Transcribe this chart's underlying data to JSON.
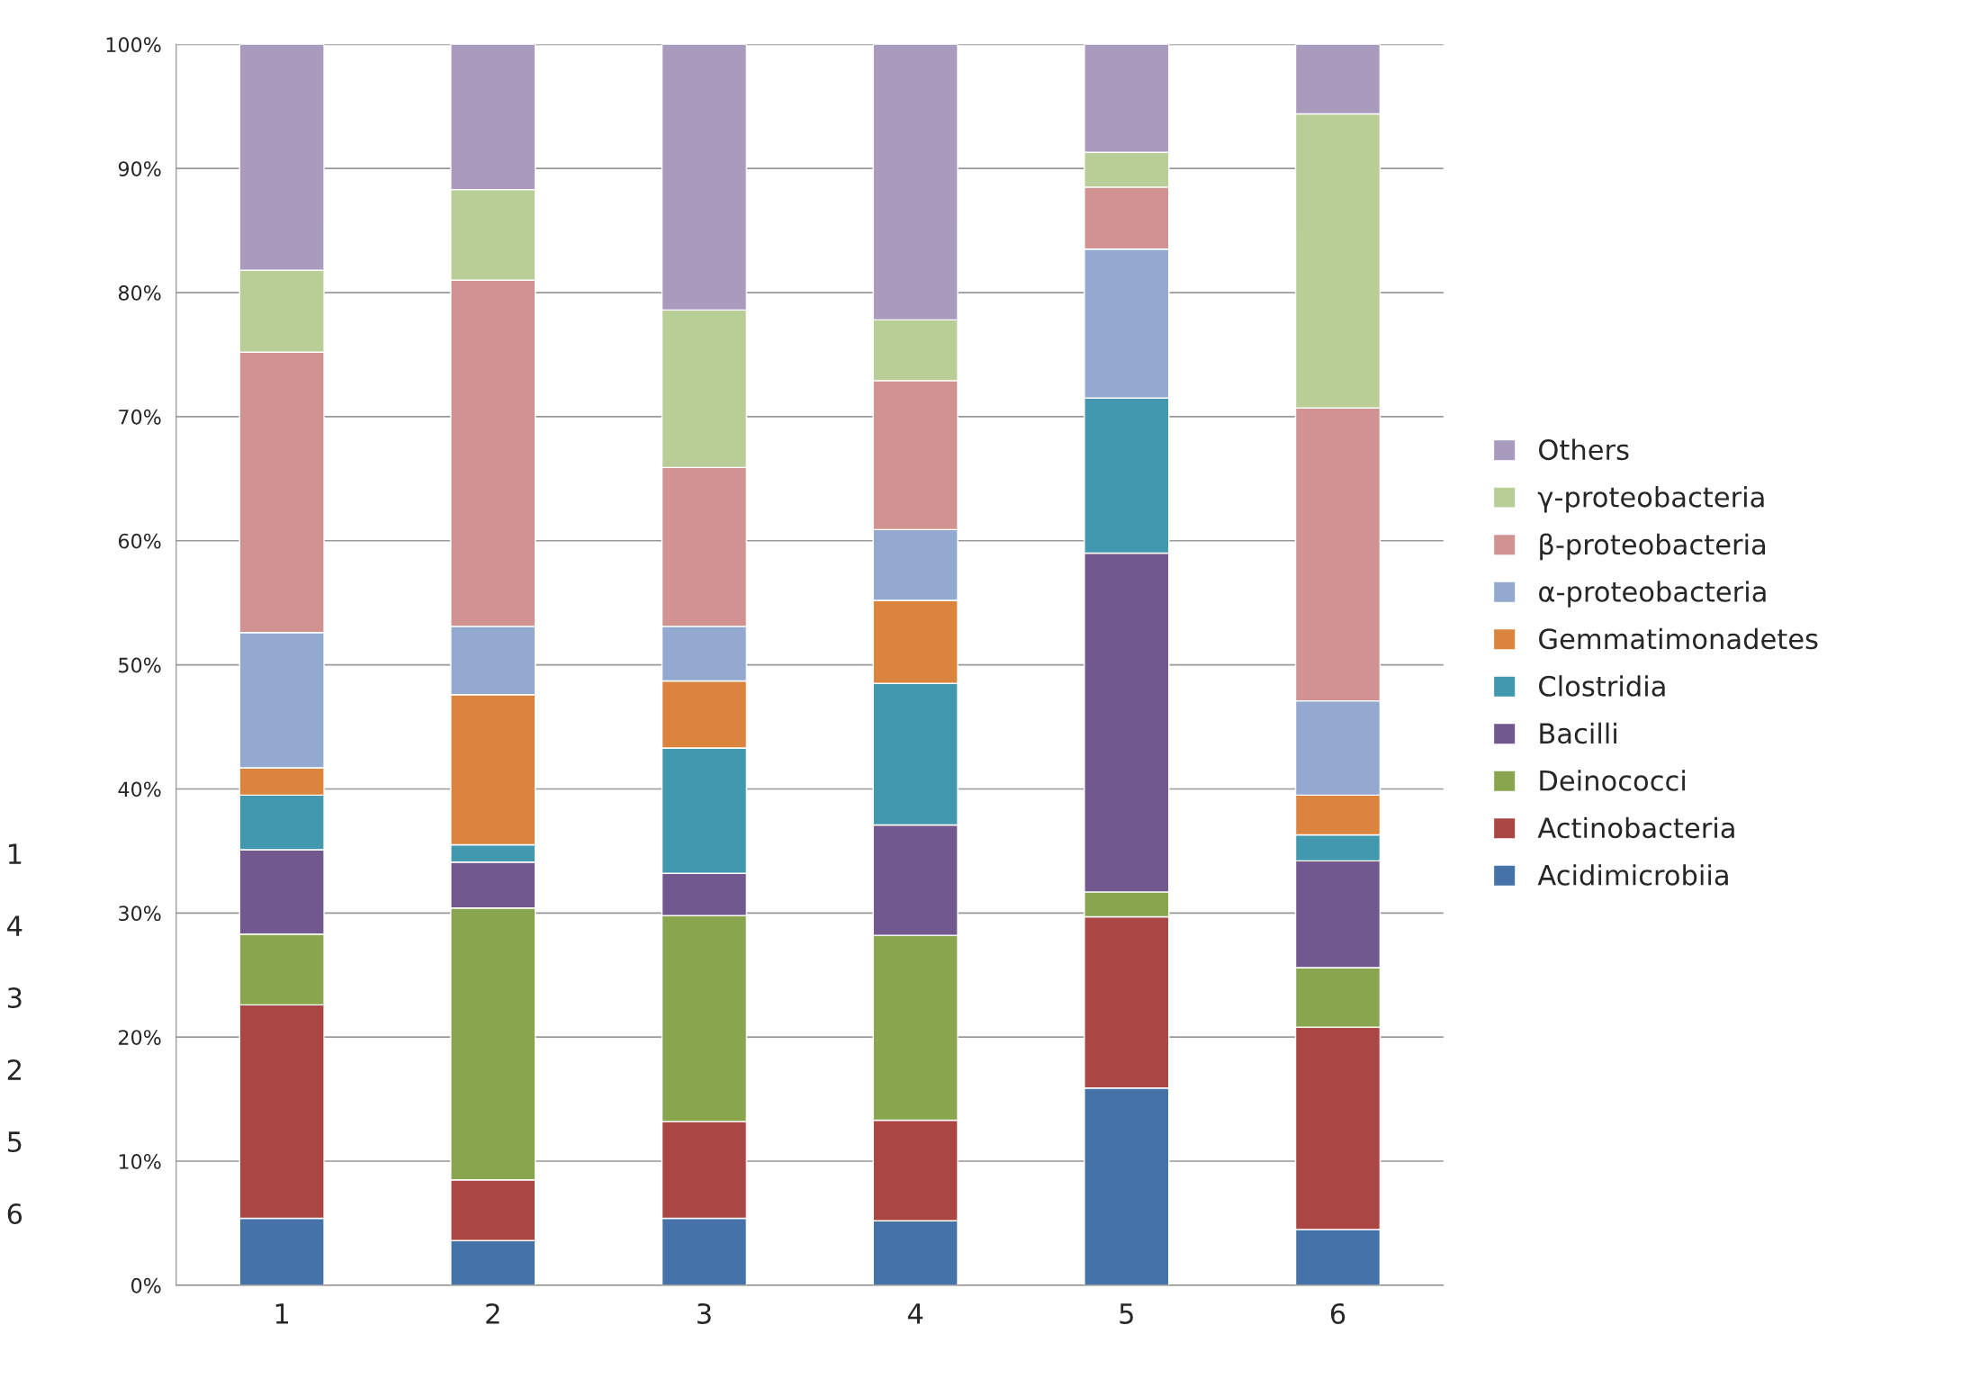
{
  "chart_data": {
    "type": "bar",
    "stacked": true,
    "categories": [
      "1",
      "2",
      "3",
      "4",
      "5",
      "6"
    ],
    "series": [
      {
        "name": "Acidimicrobiia",
        "color": "#4572a7",
        "values": [
          5.4,
          3.6,
          5.4,
          5.2,
          15.9,
          4.5
        ]
      },
      {
        "name": "Actinobacteria",
        "color": "#aa4643",
        "values": [
          17.2,
          4.9,
          7.8,
          8.1,
          13.8,
          16.3
        ]
      },
      {
        "name": "Deinococci",
        "color": "#89a54e",
        "values": [
          5.7,
          21.9,
          16.6,
          14.9,
          2.0,
          4.8
        ]
      },
      {
        "name": "Bacilli",
        "color": "#71588f",
        "values": [
          6.8,
          3.7,
          3.4,
          8.9,
          27.3,
          8.6
        ]
      },
      {
        "name": "Clostridia",
        "color": "#4198af",
        "values": [
          4.4,
          1.4,
          10.1,
          11.4,
          12.5,
          2.1
        ]
      },
      {
        "name": "Gemmatimonadetes",
        "color": "#db843d",
        "values": [
          2.2,
          12.1,
          5.4,
          6.7,
          0,
          3.2
        ]
      },
      {
        "name": "α-proteobacteria",
        "color": "#93a9cf",
        "values": [
          10.9,
          5.5,
          4.4,
          5.7,
          12.0,
          7.6
        ]
      },
      {
        "name": "β-proteobacteria",
        "color": "#d19392",
        "values": [
          22.6,
          27.9,
          12.8,
          12.0,
          5.0,
          23.6
        ]
      },
      {
        "name": "γ-proteobacteria",
        "color": "#b9cd96",
        "values": [
          6.6,
          7.3,
          12.7,
          4.9,
          2.8,
          23.7
        ]
      },
      {
        "name": "Others",
        "color": "#a99bbd",
        "values": [
          18.2,
          11.7,
          21.4,
          22.2,
          8.7,
          5.6
        ]
      }
    ],
    "ylim": [
      0,
      100
    ],
    "yticks": [
      {
        "value": 0,
        "label": "0%"
      },
      {
        "value": 10,
        "label": "10%"
      },
      {
        "value": 20,
        "label": "20%"
      },
      {
        "value": 30,
        "label": "30%"
      },
      {
        "value": 40,
        "label": "40%"
      },
      {
        "value": 50,
        "label": "50%"
      },
      {
        "value": 60,
        "label": "60%"
      },
      {
        "value": 70,
        "label": "70%"
      },
      {
        "value": 80,
        "label": "80%"
      },
      {
        "value": 90,
        "label": "90%"
      },
      {
        "value": 100,
        "label": "100%"
      }
    ],
    "grid": "y",
    "legend": "right",
    "annotations": [
      "1",
      "4",
      "3",
      "2",
      "5",
      "6"
    ]
  }
}
